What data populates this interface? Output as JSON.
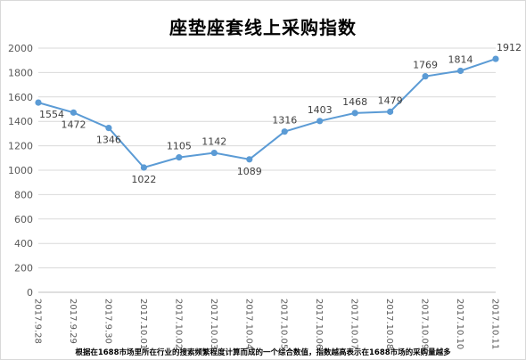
{
  "chart_data": {
    "type": "line",
    "title": "座垫座套线上采购指数",
    "categories": [
      "2017.9.28",
      "2017.9.29",
      "2017.9.30",
      "2017.10.01",
      "2017.10.02",
      "2017.10.03",
      "2017.10.04",
      "2017.10.05",
      "2017.10.06",
      "2017.10.07",
      "2017.10.08",
      "2017.10.09",
      "2017.10.10",
      "2017.10.11"
    ],
    "series": [
      {
        "values": [
          1554,
          1472,
          1346,
          1022,
          1105,
          1142,
          1089,
          1316,
          1403,
          1468,
          1479,
          1769,
          1814,
          1912
        ]
      }
    ],
    "y_ticks": [
      "0",
      "200",
      "400",
      "600",
      "800",
      "1000",
      "1200",
      "1400",
      "1600",
      "1800",
      "2000"
    ],
    "ylim": [
      0,
      2000
    ],
    "xlabel": "",
    "ylabel": "",
    "grid": true,
    "legend": "none",
    "line_color": "#5b9bd5"
  },
  "footnote": "根据在1688市场里所在行业的搜索频繁程度计算而成的一个综合数值，指数越高表示在1688市场的采购量越多"
}
